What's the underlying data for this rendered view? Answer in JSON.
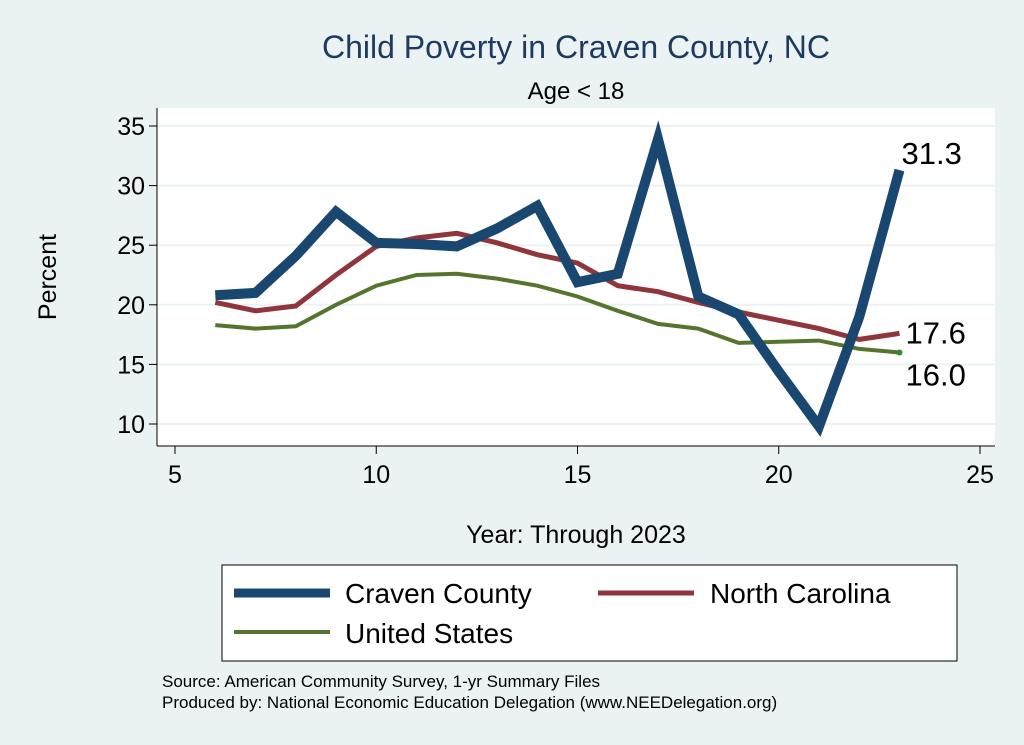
{
  "chart_data": {
    "type": "line",
    "title": "Child Poverty in Craven County, NC",
    "subtitle": "Age < 18",
    "xlabel": "Year: Through 2023",
    "ylabel": "Percent",
    "xlim": [
      5,
      25
    ],
    "ylim": [
      10,
      35
    ],
    "xticks": [
      5,
      10,
      15,
      20,
      25
    ],
    "yticks": [
      10,
      15,
      20,
      25,
      30,
      35
    ],
    "x": [
      6,
      7,
      8,
      9,
      10,
      11,
      12,
      13,
      14,
      15,
      16,
      17,
      18,
      19,
      20,
      21,
      22,
      23
    ],
    "series": [
      {
        "name": "Craven County",
        "color": "#1a476f",
        "values": [
          20.8,
          21.0,
          24.1,
          27.8,
          25.2,
          25.1,
          24.9,
          26.4,
          28.3,
          21.9,
          22.6,
          33.9,
          20.7,
          19.2,
          14.4,
          9.8,
          19.0,
          31.3
        ],
        "end_label": "31.3"
      },
      {
        "name": "North Carolina",
        "color": "#90353b",
        "values": [
          20.2,
          19.5,
          19.9,
          22.5,
          24.9,
          25.6,
          26.0,
          25.2,
          24.2,
          23.5,
          21.6,
          21.1,
          20.2,
          19.4,
          18.7,
          18.0,
          17.1,
          17.6
        ],
        "end_label": "17.6"
      },
      {
        "name": "United States",
        "color": "#55752f",
        "values": [
          18.3,
          18.0,
          18.2,
          20.0,
          21.6,
          22.5,
          22.6,
          22.2,
          21.6,
          20.7,
          19.5,
          18.4,
          18.0,
          16.8,
          16.9,
          17.0,
          16.3,
          16.0
        ],
        "end_label": "16.0"
      }
    ],
    "legend": {
      "position": "bottom",
      "entries": [
        "Craven County",
        "North Carolina",
        "United States"
      ]
    },
    "notes": [
      "Source: American Community Survey, 1-yr Summary Files",
      "Produced by: National Economic Education Delegation (www.NEEDelegation.org)"
    ],
    "grid": true
  }
}
